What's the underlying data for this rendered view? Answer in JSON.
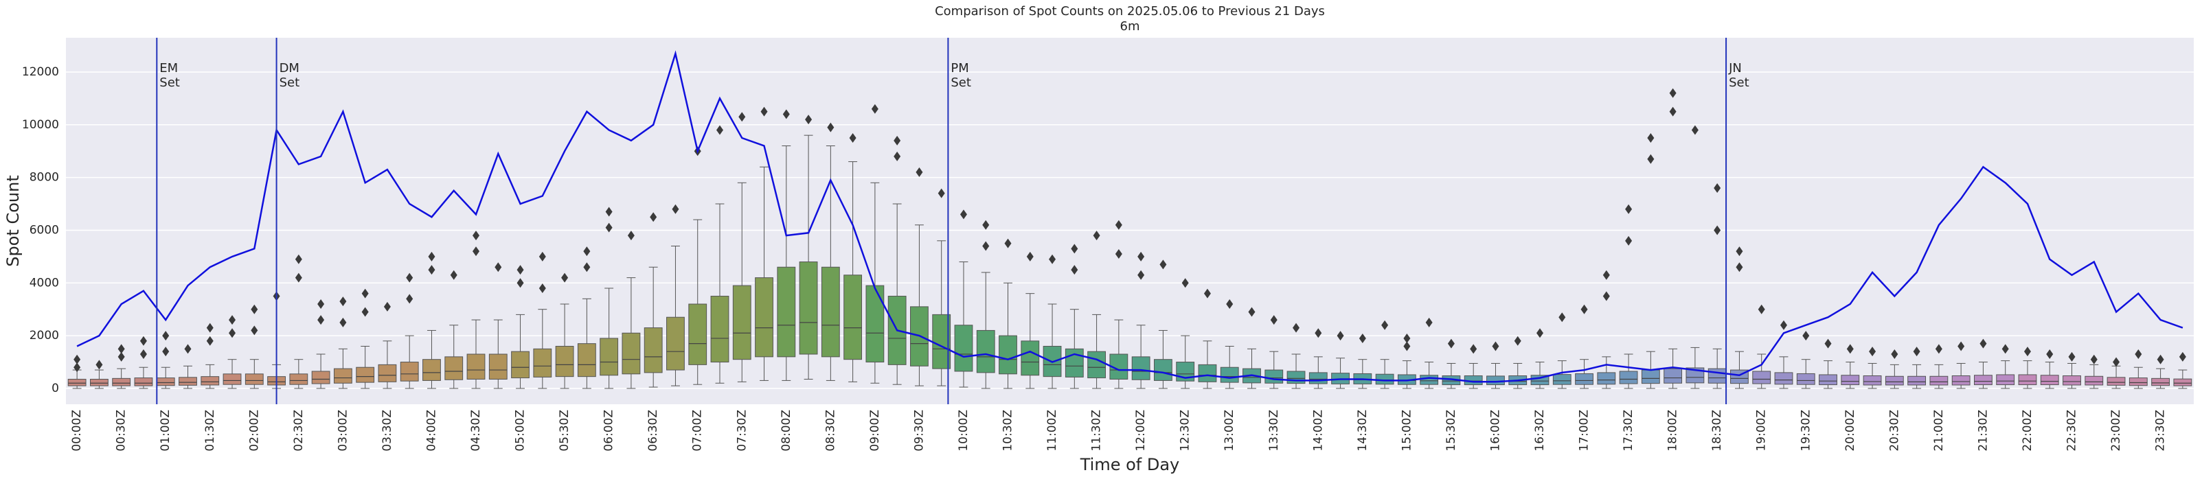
{
  "chart_data": {
    "type": "box",
    "title": "Comparison of Spot Counts on 2025.05.06 to Previous 21 Days",
    "subtitle": "6m",
    "x_label": "Time of Day",
    "y_label": "Spot Count",
    "ylim": [
      -600,
      13300
    ],
    "yticks": [
      0,
      2000,
      4000,
      6000,
      8000,
      10000,
      12000
    ],
    "grid": true,
    "categories": [
      "00:00Z",
      null,
      "00:30Z",
      null,
      "01:00Z",
      null,
      "01:30Z",
      null,
      "02:00Z",
      null,
      "02:30Z",
      null,
      "03:00Z",
      null,
      "03:30Z",
      null,
      "04:00Z",
      null,
      "04:30Z",
      null,
      "05:00Z",
      null,
      "05:30Z",
      null,
      "06:00Z",
      null,
      "06:30Z",
      null,
      "07:00Z",
      null,
      "07:30Z",
      null,
      "08:00Z",
      null,
      "08:30Z",
      null,
      "09:00Z",
      null,
      "09:30Z",
      null,
      "10:00Z",
      null,
      "10:30Z",
      null,
      "11:00Z",
      null,
      "11:30Z",
      null,
      "12:00Z",
      null,
      "12:30Z",
      null,
      "13:00Z",
      null,
      "13:30Z",
      null,
      "14:00Z",
      null,
      "14:30Z",
      null,
      "15:00Z",
      null,
      "15:30Z",
      null,
      "16:00Z",
      null,
      "16:30Z",
      null,
      "17:00Z",
      null,
      "17:30Z",
      null,
      "18:00Z",
      null,
      "18:30Z",
      null,
      "19:00Z",
      null,
      "19:30Z",
      null,
      "20:00Z",
      null,
      "20:30Z",
      null,
      "21:00Z",
      null,
      "21:30Z",
      null,
      "22:00Z",
      null,
      "22:30Z",
      null,
      "23:00Z",
      null,
      "23:30Z",
      null
    ],
    "box_colors": [
      "#c4877f",
      "#c38a78",
      "#c08c6d",
      "#b98f62",
      "#b0925a",
      "#a49556",
      "#969854",
      "#849b52",
      "#6f9e55",
      "#5fa05f",
      "#55a06d",
      "#52a07a",
      "#519f86",
      "#529f90",
      "#549e99",
      "#589ca3",
      "#6099ae",
      "#7096bb",
      "#8593c4",
      "#9890c8",
      "#a98dc8",
      "#b88bc3",
      "#c289b8",
      "#c688a5"
    ],
    "boxes": {
      "whislo": [
        0,
        0,
        0,
        0,
        0,
        0,
        0,
        0,
        0,
        0,
        0,
        0,
        0,
        0,
        0,
        0,
        0,
        0,
        0,
        0,
        0,
        0,
        0,
        0,
        0,
        0,
        50,
        100,
        150,
        200,
        250,
        300,
        300,
        350,
        300,
        250,
        200,
        150,
        100,
        100,
        50,
        0,
        0,
        0,
        0,
        0,
        0,
        0,
        0,
        0,
        0,
        0,
        0,
        0,
        0,
        0,
        0,
        0,
        0,
        0,
        0,
        0,
        0,
        0,
        0,
        0,
        0,
        0,
        0,
        0,
        0,
        0,
        0,
        0,
        0,
        0,
        0,
        0,
        0,
        0,
        0,
        0,
        0,
        0,
        0,
        0,
        0,
        0,
        0,
        0,
        0,
        0,
        0,
        0,
        0,
        0
      ],
      "q1": [
        100,
        100,
        100,
        100,
        110,
        120,
        130,
        150,
        150,
        130,
        150,
        180,
        200,
        230,
        250,
        280,
        300,
        330,
        350,
        350,
        400,
        430,
        450,
        450,
        500,
        550,
        600,
        700,
        900,
        1000,
        1100,
        1200,
        1200,
        1300,
        1200,
        1100,
        1000,
        900,
        850,
        750,
        650,
        600,
        550,
        500,
        450,
        430,
        400,
        350,
        330,
        300,
        280,
        250,
        230,
        210,
        200,
        190,
        180,
        170,
        170,
        160,
        150,
        150,
        140,
        140,
        140,
        140,
        140,
        150,
        150,
        160,
        180,
        190,
        200,
        210,
        200,
        190,
        180,
        160,
        150,
        140,
        140,
        130,
        130,
        130,
        130,
        130,
        140,
        140,
        140,
        140,
        130,
        130,
        120,
        110,
        110,
        100
      ],
      "median": [
        200,
        200,
        200,
        200,
        220,
        230,
        250,
        300,
        300,
        250,
        300,
        350,
        400,
        450,
        500,
        550,
        600,
        650,
        700,
        700,
        800,
        850,
        900,
        900,
        1000,
        1100,
        1200,
        1400,
        1700,
        1900,
        2100,
        2300,
        2400,
        2500,
        2400,
        2300,
        2100,
        1900,
        1700,
        1500,
        1300,
        1200,
        1100,
        1000,
        900,
        850,
        800,
        700,
        650,
        600,
        550,
        500,
        450,
        420,
        400,
        380,
        350,
        340,
        330,
        320,
        300,
        290,
        280,
        280,
        270,
        270,
        280,
        290,
        300,
        320,
        350,
        380,
        400,
        420,
        400,
        380,
        350,
        320,
        300,
        280,
        270,
        260,
        250,
        250,
        250,
        260,
        270,
        280,
        280,
        270,
        260,
        250,
        230,
        220,
        210,
        200
      ],
      "q3": [
        350,
        350,
        380,
        400,
        400,
        420,
        450,
        550,
        550,
        450,
        550,
        650,
        750,
        800,
        900,
        1000,
        1100,
        1200,
        1300,
        1300,
        1400,
        1500,
        1600,
        1700,
        1900,
        2100,
        2300,
        2700,
        3200,
        3500,
        3900,
        4200,
        4600,
        4800,
        4600,
        4300,
        3900,
        3500,
        3100,
        2800,
        2400,
        2200,
        2000,
        1800,
        1600,
        1500,
        1400,
        1300,
        1200,
        1100,
        1000,
        900,
        800,
        750,
        700,
        650,
        600,
        580,
        560,
        540,
        520,
        500,
        480,
        480,
        470,
        480,
        500,
        530,
        560,
        600,
        650,
        700,
        750,
        780,
        750,
        700,
        650,
        600,
        560,
        520,
        500,
        480,
        460,
        460,
        460,
        480,
        500,
        520,
        520,
        500,
        480,
        460,
        420,
        400,
        380,
        360
      ],
      "whishi": [
        700,
        700,
        750,
        800,
        800,
        850,
        900,
        1100,
        1100,
        900,
        1100,
        1300,
        1500,
        1600,
        1800,
        2000,
        2200,
        2400,
        2600,
        2600,
        2800,
        3000,
        3200,
        3400,
        3800,
        4200,
        4600,
        5400,
        6400,
        7000,
        7800,
        8400,
        9200,
        9600,
        9200,
        8600,
        7800,
        7000,
        6200,
        5600,
        4800,
        4400,
        4000,
        3600,
        3200,
        3000,
        2800,
        2600,
        2400,
        2200,
        2000,
        1800,
        1600,
        1500,
        1400,
        1300,
        1200,
        1150,
        1100,
        1100,
        1050,
        1000,
        950,
        950,
        950,
        950,
        1000,
        1050,
        1100,
        1200,
        1300,
        1400,
        1500,
        1550,
        1500,
        1400,
        1300,
        1200,
        1100,
        1050,
        1000,
        950,
        900,
        900,
        900,
        950,
        1000,
        1050,
        1050,
        1000,
        950,
        900,
        850,
        800,
        750,
        700
      ],
      "fliers": [
        [
          800,
          1100
        ],
        [
          900
        ],
        [
          1200,
          1500
        ],
        [
          1300,
          1800
        ],
        [
          1400,
          2000
        ],
        [
          1500
        ],
        [
          1800,
          2300
        ],
        [
          2100,
          2600
        ],
        [
          2200,
          3000
        ],
        [
          3500
        ],
        [
          4200,
          4900
        ],
        [
          2600,
          3200
        ],
        [
          2500,
          3300
        ],
        [
          2900,
          3600
        ],
        [
          3100
        ],
        [
          3400,
          4200
        ],
        [
          4500,
          5000
        ],
        [
          4300
        ],
        [
          5200,
          5800
        ],
        [
          4600
        ],
        [
          4000,
          4500
        ],
        [
          3800,
          5000
        ],
        [
          4200
        ],
        [
          4600,
          5200
        ],
        [
          6100,
          6700
        ],
        [
          5800
        ],
        [
          6500
        ],
        [
          6800
        ],
        [
          9000
        ],
        [
          9800
        ],
        [
          10300
        ],
        [
          10500
        ],
        [
          10400
        ],
        [
          10200
        ],
        [
          9900
        ],
        [
          9500
        ],
        [
          10600
        ],
        [
          9400,
          8800
        ],
        [
          8200
        ],
        [
          7400
        ],
        [
          6600
        ],
        [
          6200,
          5400
        ],
        [
          5500
        ],
        [
          5000
        ],
        [
          4900
        ],
        [
          5300,
          4500
        ],
        [
          5800
        ],
        [
          6200,
          5100
        ],
        [
          5000,
          4300
        ],
        [
          4700
        ],
        [
          4000
        ],
        [
          3600
        ],
        [
          3200
        ],
        [
          2900
        ],
        [
          2600
        ],
        [
          2300
        ],
        [
          2100
        ],
        [
          2000
        ],
        [
          1900
        ],
        [
          2400
        ],
        [
          1900,
          1600
        ],
        [
          2500
        ],
        [
          1700
        ],
        [
          1500
        ],
        [
          1600
        ],
        [
          1800
        ],
        [
          2100
        ],
        [
          2700
        ],
        [
          3000
        ],
        [
          3500,
          4300
        ],
        [
          5600,
          6800
        ],
        [
          8700,
          9500
        ],
        [
          11200,
          10500
        ],
        [
          9800
        ],
        [
          7600,
          6000
        ],
        [
          5200,
          4600
        ],
        [
          3000
        ],
        [
          2400
        ],
        [
          2000
        ],
        [
          1700
        ],
        [
          1500
        ],
        [
          1400
        ],
        [
          1300
        ],
        [
          1400
        ],
        [
          1500
        ],
        [
          1600
        ],
        [
          1700
        ],
        [
          1500
        ],
        [
          1400
        ],
        [
          1300
        ],
        [
          1200
        ],
        [
          1100
        ],
        [
          1000
        ],
        [
          1300
        ],
        [
          1100
        ],
        [
          1200
        ]
      ]
    },
    "line": {
      "color": "#1010dd",
      "values": [
        1600,
        2000,
        3200,
        3700,
        2600,
        3900,
        4600,
        5000,
        5300,
        9800,
        8500,
        8800,
        10500,
        7800,
        8300,
        7000,
        6500,
        7500,
        6600,
        8900,
        7000,
        7300,
        9000,
        10500,
        9800,
        9400,
        10000,
        12700,
        9000,
        11000,
        9500,
        9200,
        5800,
        5900,
        7900,
        6200,
        3800,
        2200,
        2000,
        1600,
        1200,
        1300,
        1100,
        1400,
        1000,
        1300,
        1100,
        700,
        700,
        600,
        400,
        500,
        400,
        500,
        350,
        300,
        300,
        350,
        350,
        300,
        300,
        400,
        350,
        250,
        250,
        300,
        400,
        600,
        700,
        900,
        800,
        700,
        800,
        700,
        600,
        500,
        900,
        2100,
        2400,
        2700,
        3200,
        4400,
        3500,
        4400,
        6200,
        7200,
        8400,
        7800,
        7000,
        4900,
        4300,
        4800,
        2900,
        3600,
        2600,
        2300
      ]
    },
    "annotations": [
      {
        "x": 3.6,
        "lines": [
          "EM",
          "Set"
        ]
      },
      {
        "x": 9.0,
        "lines": [
          "DM",
          "Set"
        ]
      },
      {
        "x": 39.3,
        "lines": [
          "PM",
          "Set"
        ]
      },
      {
        "x": 74.4,
        "lines": [
          "JN",
          "Set"
        ]
      }
    ],
    "annotation_color": "#2233bb"
  }
}
